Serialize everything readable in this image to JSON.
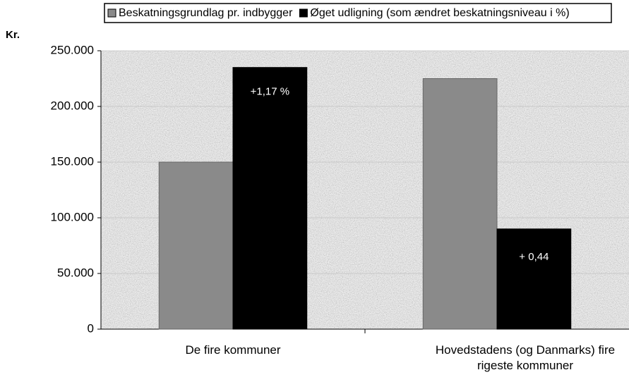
{
  "chart_data": {
    "type": "bar",
    "y_label": "Kr.",
    "categories": [
      "De fire kommuner",
      "Hovedstadens (og Danmarks) fire rigeste kommuner"
    ],
    "series": [
      {
        "name": "Beskatningsgrundlag pr. indbygger",
        "color": "#8a8a8a",
        "values": [
          150000,
          225000
        ]
      },
      {
        "name": "Øget udligning (som ændret beskatningsniveau i %)",
        "color": "#000000",
        "values": [
          235000,
          90000
        ]
      }
    ],
    "annotations": [
      "+1,17 %",
      "+ 0,44"
    ],
    "ylim": [
      0,
      250000
    ],
    "yticks": [
      0,
      {
        "value": 50000,
        "label": "50.000"
      },
      {
        "value": 100000,
        "label": "100.000"
      },
      {
        "value": 150000,
        "label": "150.000"
      },
      {
        "value": 200000,
        "label": "200.000"
      },
      {
        "value": 250000,
        "label": "250.000"
      }
    ],
    "grid": true
  }
}
